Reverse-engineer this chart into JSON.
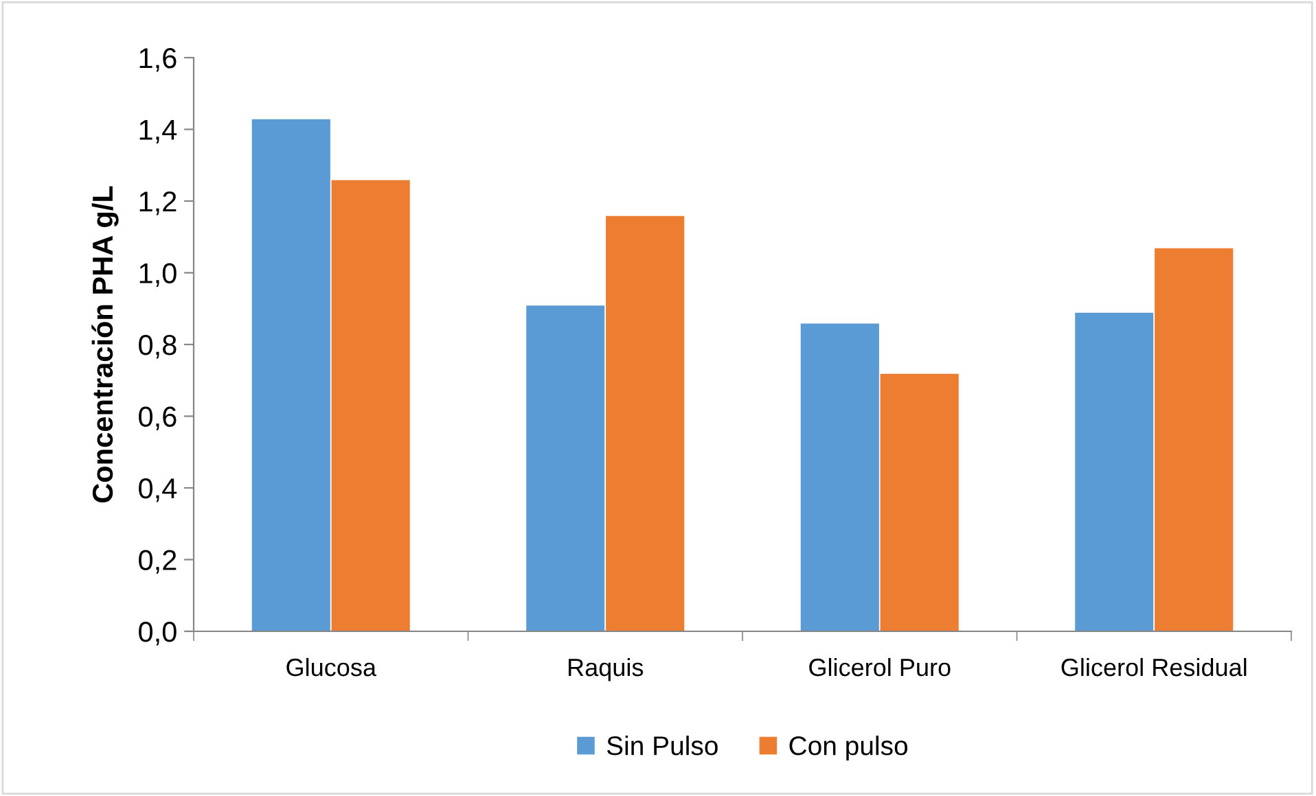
{
  "chart_data": {
    "type": "bar",
    "ylabel": "Concentración PHA g/L",
    "categories": [
      "Glucosa",
      "Raquis",
      "Glicerol Puro",
      "Glicerol Residual"
    ],
    "series": [
      {
        "name": "Sin Pulso",
        "color": "#5b9bd5",
        "values": [
          1.43,
          0.91,
          0.86,
          0.89
        ]
      },
      {
        "name": "Con pulso",
        "color": "#ed7d31",
        "values": [
          1.26,
          1.16,
          0.72,
          1.07
        ]
      }
    ],
    "ylim": [
      0,
      1.6
    ],
    "yticks": [
      {
        "value": 0,
        "label": "0,0"
      },
      {
        "value": 0.2,
        "label": "0,2"
      },
      {
        "value": 0.4,
        "label": "0,4"
      },
      {
        "value": 0.6,
        "label": "0,6"
      },
      {
        "value": 0.8,
        "label": "0,8"
      },
      {
        "value": 1.0,
        "label": "1,0"
      },
      {
        "value": 1.2,
        "label": "1,2"
      },
      {
        "value": 1.4,
        "label": "1,4"
      },
      {
        "value": 1.6,
        "label": "1,6"
      }
    ],
    "grid": false,
    "legend": "bottom"
  }
}
